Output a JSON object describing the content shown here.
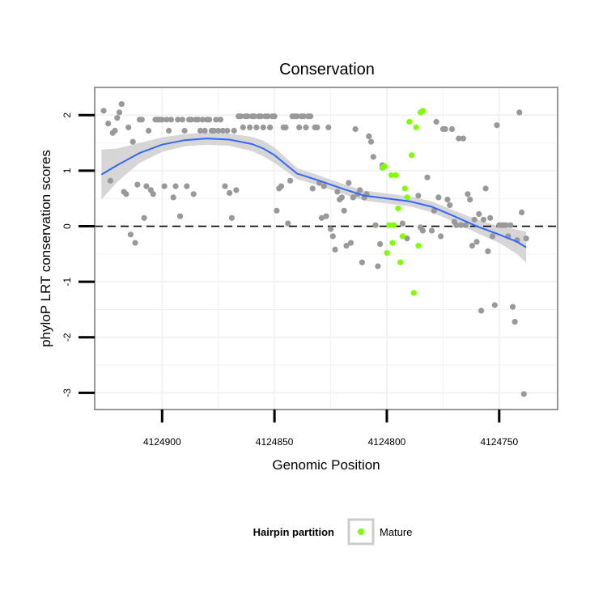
{
  "chart_data": {
    "type": "scatter",
    "title": "Conservation",
    "xlabel": "Genomic Position",
    "ylabel": "phyloP LRT conservation scores",
    "x_reversed": true,
    "xlim": [
      4124930,
      4124724
    ],
    "ylim": [
      -3.3,
      2.5
    ],
    "x_ticks": [
      4124900,
      4124850,
      4124800,
      4124750
    ],
    "x_tick_labels": [
      "4124900",
      "4124850",
      "4124800",
      "4124750"
    ],
    "y_ticks": [
      2,
      1,
      0,
      -1,
      -2,
      -3
    ],
    "y_tick_labels": [
      "2",
      "1",
      "0",
      "-1",
      "-2",
      "-3"
    ],
    "reference_line": {
      "y": 0,
      "style": "dashed"
    },
    "colors": {
      "other": "#999999",
      "mature": "#7FFF00",
      "smooth_line": "#3366FF",
      "confidence_band": "#D6D6D6",
      "panel_border": "#7F7F7F",
      "grid": "#F2F2F2"
    },
    "legend": {
      "title": "Hairpin partition",
      "position": "bottom",
      "entries": [
        {
          "label": "Mature",
          "color": "#7FFF00"
        }
      ]
    },
    "series": [
      {
        "name": "Other",
        "points": [
          [
            4124926,
            2.08
          ],
          [
            4124924,
            1.85
          ],
          [
            4124923,
            0.82
          ],
          [
            4124922,
            1.68
          ],
          [
            4124921,
            1.72
          ],
          [
            4124920,
            1.95
          ],
          [
            4124919,
            2.05
          ],
          [
            4124918,
            2.2
          ],
          [
            4124917,
            0.62
          ],
          [
            4124916,
            0.58
          ],
          [
            4124915,
            1.78
          ],
          [
            4124914,
            -0.15
          ],
          [
            4124913,
            1.52
          ],
          [
            4124912,
            -0.3
          ],
          [
            4124911,
            0.75
          ],
          [
            4124910,
            1.92
          ],
          [
            4124909,
            1.92
          ],
          [
            4124908,
            0.15
          ],
          [
            4124907,
            0.72
          ],
          [
            4124906,
            1.72
          ],
          [
            4124905,
            0.65
          ],
          [
            4124904,
            0.58
          ],
          [
            4124903,
            1.92
          ],
          [
            4124902,
            1.92
          ],
          [
            4124901,
            1.92
          ],
          [
            4124900,
            1.92
          ],
          [
            4124899,
            0.72
          ],
          [
            4124898,
            1.92
          ],
          [
            4124897,
            1.72
          ],
          [
            4124896,
            1.92
          ],
          [
            4124895,
            0.52
          ],
          [
            4124894,
            0.72
          ],
          [
            4124893,
            1.92
          ],
          [
            4124892,
            0.18
          ],
          [
            4124891,
            1.92
          ],
          [
            4124890,
            1.72
          ],
          [
            4124889,
            0.72
          ],
          [
            4124888,
            1.92
          ],
          [
            4124887,
            1.92
          ],
          [
            4124886,
            0.58
          ],
          [
            4124885,
            1.92
          ],
          [
            4124884,
            1.92
          ],
          [
            4124883,
            1.72
          ],
          [
            4124882,
            1.92
          ],
          [
            4124881,
            1.72
          ],
          [
            4124880,
            1.92
          ],
          [
            4124879,
            1.92
          ],
          [
            4124878,
            1.72
          ],
          [
            4124877,
            1.72
          ],
          [
            4124876,
            1.92
          ],
          [
            4124875,
            1.72
          ],
          [
            4124874,
            1.92
          ],
          [
            4124873,
            1.72
          ],
          [
            4124872,
            0.72
          ],
          [
            4124871,
            1.72
          ],
          [
            4124870,
            0.6
          ],
          [
            4124869,
            0.15
          ],
          [
            4124868,
            1.72
          ],
          [
            4124867,
            0.65
          ],
          [
            4124866,
            1.98
          ],
          [
            4124865,
            1.98
          ],
          [
            4124864,
            1.78
          ],
          [
            4124863,
            1.98
          ],
          [
            4124862,
            1.98
          ],
          [
            4124861,
            1.78
          ],
          [
            4124860,
            1.98
          ],
          [
            4124859,
            1.98
          ],
          [
            4124858,
            1.78
          ],
          [
            4124857,
            1.98
          ],
          [
            4124856,
            1.98
          ],
          [
            4124855,
            1.78
          ],
          [
            4124854,
            1.98
          ],
          [
            4124853,
            1.98
          ],
          [
            4124852,
            1.78
          ],
          [
            4124851,
            1.98
          ],
          [
            4124850,
            1.98
          ],
          [
            4124849,
            0.28
          ],
          [
            4124848,
            0.68
          ],
          [
            4124847,
            0.72
          ],
          [
            4124846,
            1.78
          ],
          [
            4124845,
            1.78
          ],
          [
            4124844,
            0.05
          ],
          [
            4124843,
            0.82
          ],
          [
            4124842,
            1.98
          ],
          [
            4124841,
            1.98
          ],
          [
            4124840,
            1.98
          ],
          [
            4124839,
            1.78
          ],
          [
            4124838,
            1.98
          ],
          [
            4124837,
            1.98
          ],
          [
            4124836,
            1.78
          ],
          [
            4124835,
            1.98
          ],
          [
            4124834,
            1.98
          ],
          [
            4124833,
            0.68
          ],
          [
            4124832,
            1.78
          ],
          [
            4124831,
            1.78
          ],
          [
            4124830,
            0.78
          ],
          [
            4124829,
            0.15
          ],
          [
            4124828,
            0.72
          ],
          [
            4124827,
            0.18
          ],
          [
            4124826,
            1.78
          ],
          [
            4124825,
            -0.05
          ],
          [
            4124824,
            -0.18
          ],
          [
            4124823,
            -0.42
          ],
          [
            4124822,
            0.62
          ],
          [
            4124821,
            0.48
          ],
          [
            4124820,
            0.52
          ],
          [
            4124819,
            0.28
          ],
          [
            4124818,
            -0.35
          ],
          [
            4124817,
            0.78
          ],
          [
            4124816,
            -0.3
          ],
          [
            4124815,
            0.52
          ],
          [
            4124814,
            1.75
          ],
          [
            4124813,
            0.58
          ],
          [
            4124812,
            0.65
          ],
          [
            4124811,
            -0.65
          ],
          [
            4124810,
            0.52
          ],
          [
            4124809,
            0.58
          ],
          [
            4124808,
            1.62
          ],
          [
            4124807,
            1.52
          ],
          [
            4124806,
            1.25
          ],
          [
            4124805,
            0.02
          ],
          [
            4124804,
            -0.72
          ],
          [
            4124803,
            -0.32
          ],
          [
            4124802,
            1.1
          ],
          [
            4124797,
            0.02
          ],
          [
            4124793,
            0.05
          ],
          [
            4124791,
            -0.22
          ],
          [
            4124786,
            0.55
          ],
          [
            4124785,
            -0.02
          ],
          [
            4124784,
            -0.08
          ],
          [
            4124782,
            0.88
          ],
          [
            4124780,
            -0.08
          ],
          [
            4124779,
            0.28
          ],
          [
            4124778,
            1.88
          ],
          [
            4124777,
            0.52
          ],
          [
            4124776,
            -0.18
          ],
          [
            4124775,
            1.75
          ],
          [
            4124774,
            1.75
          ],
          [
            4124773,
            0.48
          ],
          [
            4124772,
            0.38
          ],
          [
            4124771,
            1.75
          ],
          [
            4124770,
            0.08
          ],
          [
            4124769,
            0.02
          ],
          [
            4124768,
            1.58
          ],
          [
            4124767,
            0.02
          ],
          [
            4124766,
            1.58
          ],
          [
            4124765,
            0.02
          ],
          [
            4124764,
            0.58
          ],
          [
            4124763,
            0.48
          ],
          [
            4124762,
            -0.35
          ],
          [
            4124761,
            0.12
          ],
          [
            4124760,
            -0.28
          ],
          [
            4124759,
            0.22
          ],
          [
            4124758,
            -1.52
          ],
          [
            4124757,
            0.12
          ],
          [
            4124756,
            0.68
          ],
          [
            4124755,
            -0.45
          ],
          [
            4124754,
            0.15
          ],
          [
            4124753,
            -0.18
          ],
          [
            4124752,
            -1.42
          ],
          [
            4124751,
            1.82
          ],
          [
            4124750,
            0.02
          ],
          [
            4124749,
            0.02
          ],
          [
            4124748,
            0.02
          ],
          [
            4124747,
            0.02
          ],
          [
            4124746,
            -0.18
          ],
          [
            4124745,
            0.02
          ],
          [
            4124744,
            -1.45
          ],
          [
            4124743,
            -1.72
          ],
          [
            4124742,
            -0.25
          ],
          [
            4124741,
            2.05
          ],
          [
            4124740,
            0.25
          ],
          [
            4124739,
            -3.02
          ],
          [
            4124738,
            -0.22
          ]
        ]
      },
      {
        "name": "Mature",
        "points": [
          [
            4124802,
            1.05
          ],
          [
            4124801,
            1.08
          ],
          [
            4124800,
            -0.48
          ],
          [
            4124799,
            0.02
          ],
          [
            4124798,
            0.92
          ],
          [
            4124797.5,
            -0.3
          ],
          [
            4124797,
            0.02
          ],
          [
            4124796,
            0.92
          ],
          [
            4124795,
            0.32
          ],
          [
            4124794,
            -0.65
          ],
          [
            4124793,
            -0.18
          ],
          [
            4124792,
            0.68
          ],
          [
            4124791,
            0.52
          ],
          [
            4124790,
            1.88
          ],
          [
            4124789,
            1.28
          ],
          [
            4124788,
            -1.2
          ],
          [
            4124787,
            1.78
          ],
          [
            4124786,
            -0.35
          ],
          [
            4124785,
            2.05
          ],
          [
            4124784,
            2.08
          ]
        ]
      }
    ],
    "smooth_line": {
      "x": [
        4124927,
        4124920,
        4124910,
        4124900,
        4124890,
        4124880,
        4124870,
        4124860,
        4124855,
        4124850,
        4124840,
        4124830,
        4124820,
        4124810,
        4124800,
        4124790,
        4124780,
        4124770,
        4124760,
        4124750,
        4124742,
        4124738
      ],
      "y": [
        0.93,
        1.1,
        1.32,
        1.47,
        1.55,
        1.58,
        1.56,
        1.48,
        1.4,
        1.28,
        0.95,
        0.82,
        0.68,
        0.55,
        0.5,
        0.45,
        0.35,
        0.18,
        0.0,
        -0.15,
        -0.28,
        -0.38
      ],
      "band_halfwidth": [
        0.45,
        0.3,
        0.18,
        0.13,
        0.11,
        0.11,
        0.11,
        0.13,
        0.14,
        0.14,
        0.1,
        0.09,
        0.09,
        0.09,
        0.09,
        0.09,
        0.1,
        0.1,
        0.12,
        0.15,
        0.22,
        0.28
      ]
    }
  }
}
